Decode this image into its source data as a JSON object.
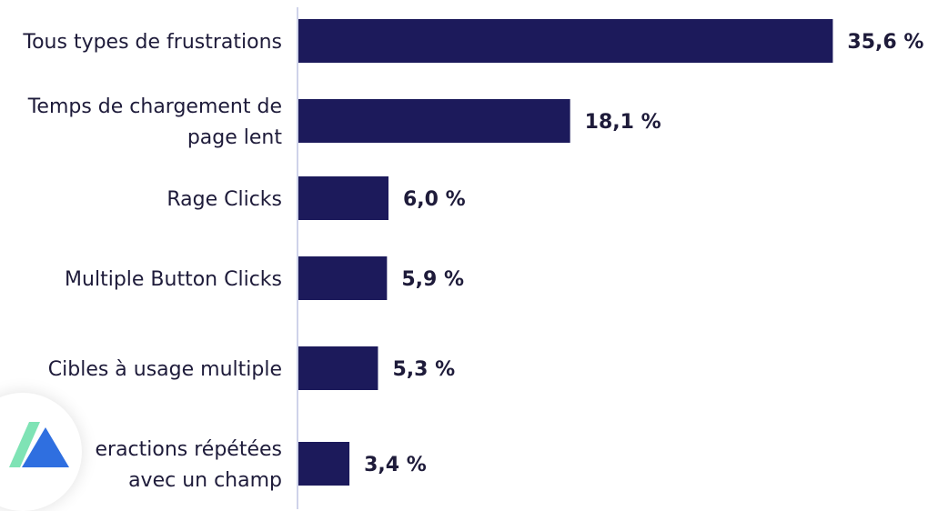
{
  "chart_data": {
    "type": "bar",
    "orientation": "horizontal",
    "categories": [
      [
        "Tous types de frustrations"
      ],
      [
        "Temps de chargement de",
        "page lent"
      ],
      [
        "Rage Clicks"
      ],
      [
        "Multiple Button Clicks"
      ],
      [
        "Cibles à usage multiple"
      ],
      [
        "eractions répétées",
        "avec un champ"
      ]
    ],
    "values": [
      35.6,
      18.1,
      6.0,
      5.9,
      5.3,
      3.4
    ],
    "value_labels": [
      "35,6 %",
      "18,1 %",
      "6,0 %",
      "5,9 %",
      "5,3 %",
      "3,4 %"
    ],
    "xlim": [
      0,
      36
    ],
    "grid": false,
    "colors": {
      "bar": "#1c1a5b",
      "axis": "#cfd3ea",
      "text": "#1e1b3a"
    }
  },
  "logo": {
    "icon": "brand-logo-icon",
    "colors": [
      "#7fe3b5",
      "#2f6fe0"
    ]
  }
}
